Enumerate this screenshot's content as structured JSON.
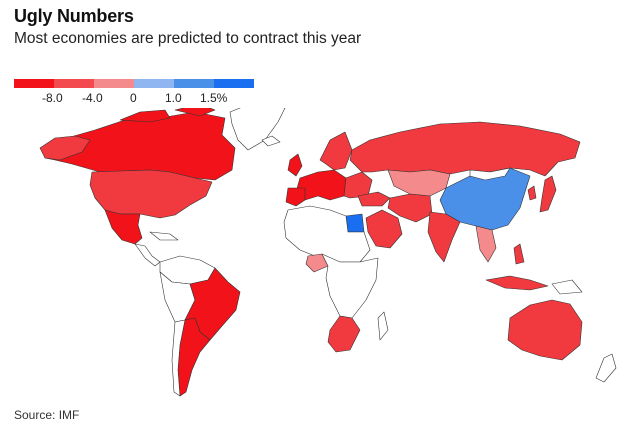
{
  "header": {
    "title": "Ugly Numbers",
    "subtitle": "Most economies are predicted to contract this year"
  },
  "legend": {
    "colors": [
      "#f2131a",
      "#f24a4f",
      "#f58a8c",
      "#8fb6f0",
      "#4a8fe8",
      "#1a6ff0"
    ],
    "labels": [
      "-8.0",
      "-4.0",
      "0",
      "1.0",
      "1.5%"
    ]
  },
  "colors": {
    "severe": "#f2131a",
    "strong": "#f03a3f",
    "mild": "#f58a8c",
    "growth_low": "#4a8fe8",
    "growth_high": "#1a6ff0",
    "no_data": "#ffffff",
    "border": "#333333"
  },
  "source": "Source: IMF"
}
